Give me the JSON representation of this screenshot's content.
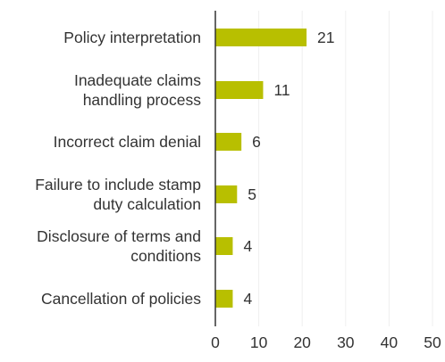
{
  "chart_data": {
    "type": "bar",
    "orientation": "horizontal",
    "categories": [
      [
        "Policy interpretation"
      ],
      [
        "Inadequate claims",
        "handling process"
      ],
      [
        "Incorrect claim denial"
      ],
      [
        "Failure to include stamp",
        "duty calculation"
      ],
      [
        "Disclosure of terms and",
        "conditions"
      ],
      [
        "Cancellation of policies"
      ]
    ],
    "values": [
      21,
      11,
      6,
      5,
      4,
      4
    ],
    "value_labels": [
      "21",
      "11",
      "6",
      "5",
      "4",
      "4"
    ],
    "xlim": [
      0,
      50
    ],
    "xticks": [
      0,
      10,
      20,
      30,
      40,
      50
    ],
    "xtick_labels": [
      "0",
      "10",
      "20",
      "30",
      "40",
      "50"
    ],
    "title": "",
    "xlabel": "",
    "ylabel": "",
    "grid": "vertical",
    "legend": "none",
    "colors": {
      "bar": "#b8bf00",
      "axis": "#333333",
      "grid": "#efefef",
      "text": "#333333"
    }
  }
}
